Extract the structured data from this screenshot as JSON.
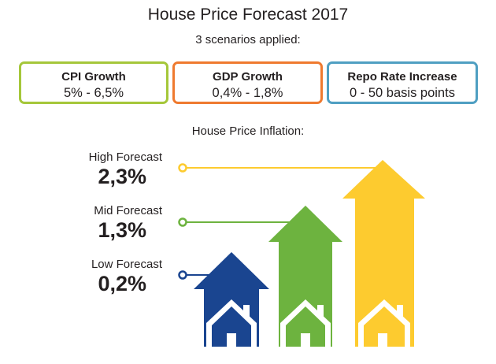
{
  "title": "House Price Forecast 2017",
  "subtitle": "3 scenarios applied:",
  "scenarios": [
    {
      "title": "CPI Growth",
      "value": "5% - 6,5%",
      "color": "#a5c73a"
    },
    {
      "title": "GDP Growth",
      "value": "0,4% - 1,8%",
      "color": "#ef7a2f"
    },
    {
      "title": "Repo Rate Increase",
      "value": "0 - 50 basis points",
      "color": "#4f9fc2"
    }
  ],
  "section_title": "House Price Inflation:",
  "forecasts": [
    {
      "label": "High Forecast",
      "value": "2,3%",
      "color": "#fdcb2f"
    },
    {
      "label": "Mid Forecast",
      "value": "1,3%",
      "color": "#6db33f"
    },
    {
      "label": "Low Forecast",
      "value": "0,2%",
      "color": "#1a4590"
    }
  ],
  "icons": [
    "house-arrow-icon",
    "house-icon"
  ]
}
